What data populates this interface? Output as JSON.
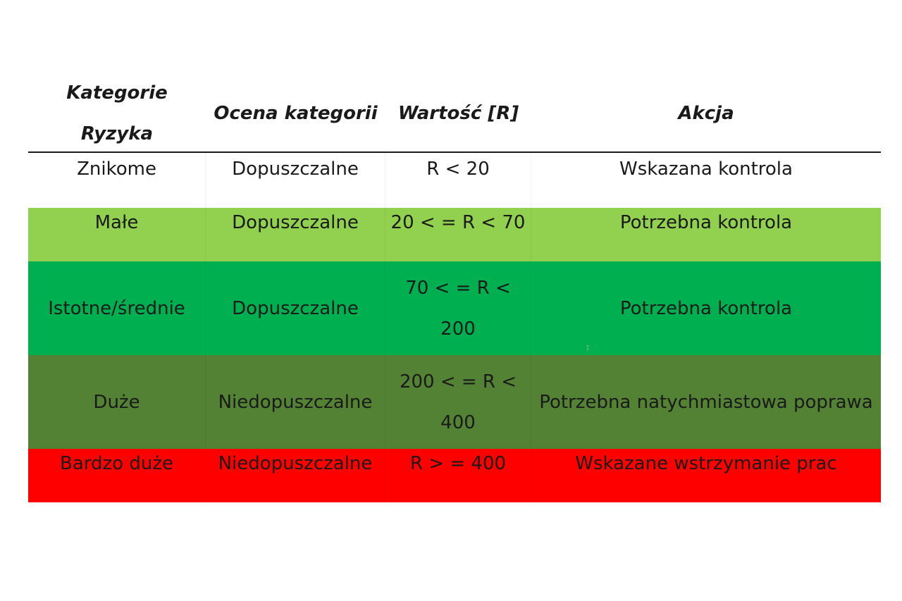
{
  "table": {
    "headers": [
      "Kategorie Ryzyka",
      "Ocena kategorii",
      "Wartość [R]",
      "Akcja"
    ],
    "rows": [
      {
        "category": "Znikome",
        "assessment": "Dopuszczalne",
        "value_lines": [
          "R < 20"
        ],
        "action": "Wskazana kontrola",
        "color": "#ffffff"
      },
      {
        "category": "Małe",
        "assessment": "Dopuszczalne",
        "value_lines": [
          "20 < = R < 70"
        ],
        "action": "Potrzebna kontrola",
        "color": "#92d050"
      },
      {
        "category": "Istotne/średnie",
        "assessment": "Dopuszczalne",
        "value_lines": [
          "70 < = R <",
          "200"
        ],
        "action": "Potrzebna kontrola",
        "color": "#00b050"
      },
      {
        "category": "Duże",
        "assessment": "Niedopuszczalne",
        "value_lines": [
          "200 < = R <",
          "400"
        ],
        "action": "Potrzebna natychmiastowa poprawa",
        "color": "#548235"
      },
      {
        "category": "Bardzo duże",
        "assessment": "Niedopuszczalne",
        "value_lines": [
          "R > = 400"
        ],
        "action": "Wskazane wstrzymanie prac",
        "color": "#ff0000"
      }
    ]
  },
  "cursor_glyph": "I"
}
